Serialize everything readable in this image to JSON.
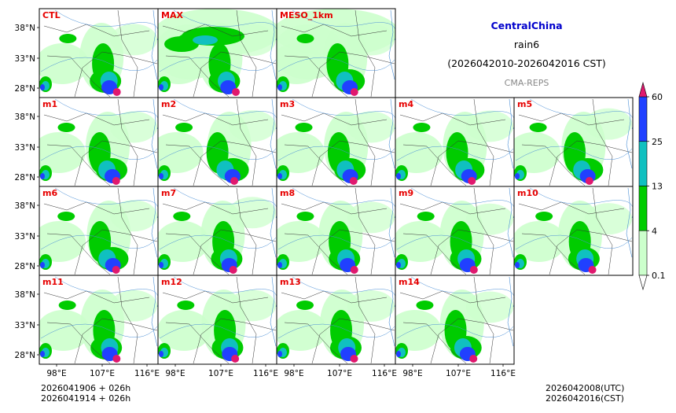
{
  "title": {
    "region": "CentralChina",
    "variable": "rain6",
    "period": "(2026042010-2026042016 CST)",
    "source": "CMA-REPS",
    "region_color": "#0000cc",
    "source_color": "#888888"
  },
  "panels": [
    {
      "row": 0,
      "col": 0,
      "label": "CTL"
    },
    {
      "row": 0,
      "col": 1,
      "label": "MAX"
    },
    {
      "row": 0,
      "col": 2,
      "label": "MESO_1km"
    },
    {
      "row": 1,
      "col": 0,
      "label": "m1"
    },
    {
      "row": 1,
      "col": 1,
      "label": "m2"
    },
    {
      "row": 1,
      "col": 2,
      "label": "m3"
    },
    {
      "row": 1,
      "col": 3,
      "label": "m4"
    },
    {
      "row": 1,
      "col": 4,
      "label": "m5"
    },
    {
      "row": 2,
      "col": 0,
      "label": "m6"
    },
    {
      "row": 2,
      "col": 1,
      "label": "m7"
    },
    {
      "row": 2,
      "col": 2,
      "label": "m8"
    },
    {
      "row": 2,
      "col": 3,
      "label": "m9"
    },
    {
      "row": 2,
      "col": 4,
      "label": "m10"
    },
    {
      "row": 3,
      "col": 0,
      "label": "m11"
    },
    {
      "row": 3,
      "col": 1,
      "label": "m12"
    },
    {
      "row": 3,
      "col": 2,
      "label": "m13"
    },
    {
      "row": 3,
      "col": 3,
      "label": "m14"
    }
  ],
  "axes": {
    "lat_ticks": [
      "38°N",
      "33°N",
      "28°N"
    ],
    "lon_ticks": [
      "98°E",
      "107°E",
      "116°E"
    ]
  },
  "colorbar": {
    "ticks": [
      "60",
      "25",
      "13",
      "4",
      "0.1"
    ],
    "colors": [
      "#2040ff",
      "#10c0c0",
      "#00cc00",
      "#ccffcc"
    ],
    "top_color": "#e0186e"
  },
  "rain_colors": {
    "light": "#ccffcc",
    "moderate": "#00cc00",
    "heavy": "#10c0c0",
    "very_heavy": "#2040ff",
    "extreme": "#e0186e"
  },
  "footer": {
    "init_1": "2026041906  +  026h",
    "init_2": "2026041914  +  026h",
    "valid_utc": "2026042008(UTC)",
    "valid_cst": "2026042016(CST)"
  }
}
